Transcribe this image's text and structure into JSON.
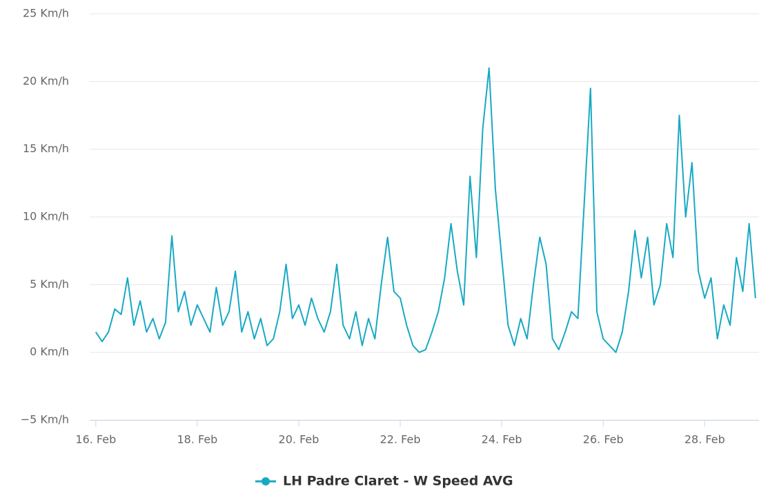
{
  "chart_data": {
    "type": "line",
    "x": [
      16,
      16.125,
      16.25,
      16.375,
      16.5,
      16.625,
      16.75,
      16.875,
      17,
      17.125,
      17.25,
      17.375,
      17.5,
      17.625,
      17.75,
      17.875,
      18,
      18.125,
      18.25,
      18.375,
      18.5,
      18.625,
      18.75,
      18.875,
      19,
      19.125,
      19.25,
      19.375,
      19.5,
      19.625,
      19.75,
      19.875,
      20,
      20.125,
      20.25,
      20.375,
      20.5,
      20.625,
      20.75,
      20.875,
      21,
      21.125,
      21.25,
      21.375,
      21.5,
      21.625,
      21.75,
      21.875,
      22,
      22.125,
      22.25,
      22.375,
      22.5,
      22.625,
      22.75,
      22.875,
      23,
      23.125,
      23.25,
      23.375,
      23.5,
      23.625,
      23.75,
      23.875,
      24,
      24.125,
      24.25,
      24.375,
      24.5,
      24.625,
      24.75,
      24.875,
      25,
      25.125,
      25.25,
      25.375,
      25.5,
      25.625,
      25.75,
      25.875,
      26,
      26.125,
      26.25,
      26.375,
      26.5,
      26.625,
      26.75,
      26.875,
      27,
      27.125,
      27.25,
      27.375,
      27.5,
      27.625,
      27.75,
      27.875,
      28,
      28.125,
      28.25,
      28.375,
      28.5,
      28.625,
      28.75,
      28.875,
      29
    ],
    "series": [
      {
        "name": "LH Padre Claret - W Speed AVG",
        "color": "#17a9c3",
        "values": [
          1.5,
          0.8,
          1.5,
          3.2,
          2.8,
          5.5,
          2.0,
          3.8,
          1.5,
          2.5,
          1.0,
          2.2,
          8.6,
          3.0,
          4.5,
          2.0,
          3.5,
          2.5,
          1.5,
          4.8,
          2.0,
          3.0,
          6.0,
          1.5,
          3.0,
          1.0,
          2.5,
          0.5,
          1.0,
          3.0,
          6.5,
          2.5,
          3.5,
          2.0,
          4.0,
          2.5,
          1.5,
          3.0,
          6.5,
          2.0,
          1.0,
          3.0,
          0.5,
          2.5,
          1.0,
          5.0,
          8.5,
          4.5,
          4.0,
          2.0,
          0.5,
          0,
          0.2,
          1.5,
          3.0,
          5.5,
          9.5,
          6.0,
          3.5,
          13.0,
          7.0,
          16.5,
          21.0,
          12.0,
          7.0,
          2.0,
          0.5,
          2.5,
          1.0,
          5.0,
          8.5,
          6.5,
          1.0,
          0.2,
          1.5,
          3.0,
          2.5,
          11.0,
          19.5,
          3.0,
          1.0,
          0.5,
          0,
          1.5,
          4.5,
          9.0,
          5.5,
          8.5,
          3.5,
          5.0,
          9.5,
          7.0,
          17.5,
          10.0,
          14.0,
          6.0,
          4.0,
          5.5,
          1.0,
          3.5,
          2.0,
          7.0,
          4.5,
          9.5,
          4.0
        ]
      }
    ],
    "xlim": [
      15.88,
      29.07
    ],
    "xticks": [
      {
        "value": 16,
        "label": "16. Feb"
      },
      {
        "value": 18,
        "label": "18. Feb"
      },
      {
        "value": 20,
        "label": "20. Feb"
      },
      {
        "value": 22,
        "label": "22. Feb"
      },
      {
        "value": 24,
        "label": "24. Feb"
      },
      {
        "value": 26,
        "label": "26. Feb"
      },
      {
        "value": 28,
        "label": "28. Feb"
      }
    ],
    "ylim": [
      -5,
      25
    ],
    "yticks": [
      {
        "value": -5,
        "label": "−5 Km/h"
      },
      {
        "value": 0,
        "label": "0 Km/h"
      },
      {
        "value": 5,
        "label": "5 Km/h"
      },
      {
        "value": 10,
        "label": "10 Km/h"
      },
      {
        "value": 15,
        "label": "15 Km/h"
      },
      {
        "value": 20,
        "label": "20 Km/h"
      },
      {
        "value": 25,
        "label": "25 Km/h"
      }
    ],
    "grid": true
  }
}
